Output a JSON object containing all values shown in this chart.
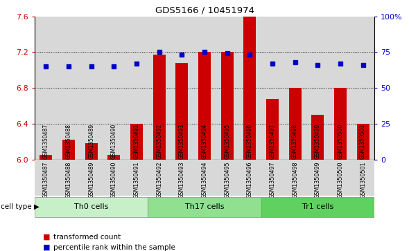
{
  "title": "GDS5166 / 10451974",
  "samples": [
    "GSM1350487",
    "GSM1350488",
    "GSM1350489",
    "GSM1350490",
    "GSM1350491",
    "GSM1350492",
    "GSM1350493",
    "GSM1350494",
    "GSM1350495",
    "GSM1350496",
    "GSM1350497",
    "GSM1350498",
    "GSM1350499",
    "GSM1350500",
    "GSM1350501"
  ],
  "transformed_count": [
    6.05,
    6.22,
    6.18,
    6.05,
    6.4,
    7.17,
    7.08,
    7.2,
    7.2,
    7.6,
    6.68,
    6.8,
    6.5,
    6.8,
    6.4
  ],
  "percentile_rank": [
    65,
    65,
    65,
    65,
    67,
    75,
    73,
    75,
    74,
    73,
    67,
    68,
    66,
    67,
    66
  ],
  "cell_types": [
    {
      "label": "Th0 cells",
      "start": 0,
      "end": 5,
      "color": "#c8f0c8"
    },
    {
      "label": "Th17 cells",
      "start": 5,
      "end": 10,
      "color": "#90e090"
    },
    {
      "label": "Tr1 cells",
      "start": 10,
      "end": 15,
      "color": "#60d060"
    }
  ],
  "ylim_left": [
    6.0,
    7.6
  ],
  "ylim_right": [
    0,
    100
  ],
  "yticks_left": [
    6.0,
    6.4,
    6.8,
    7.2,
    7.6
  ],
  "yticks_right": [
    0,
    25,
    50,
    75,
    100
  ],
  "bar_color": "#cc0000",
  "dot_color": "#0000cc",
  "bar_bottom": 6.0,
  "col_bg_color": "#d8d8d8",
  "xlabel_color": "#cc0000",
  "ylabel_right_color": "#0000cc",
  "legend_items": [
    "transformed count",
    "percentile rank within the sample"
  ]
}
